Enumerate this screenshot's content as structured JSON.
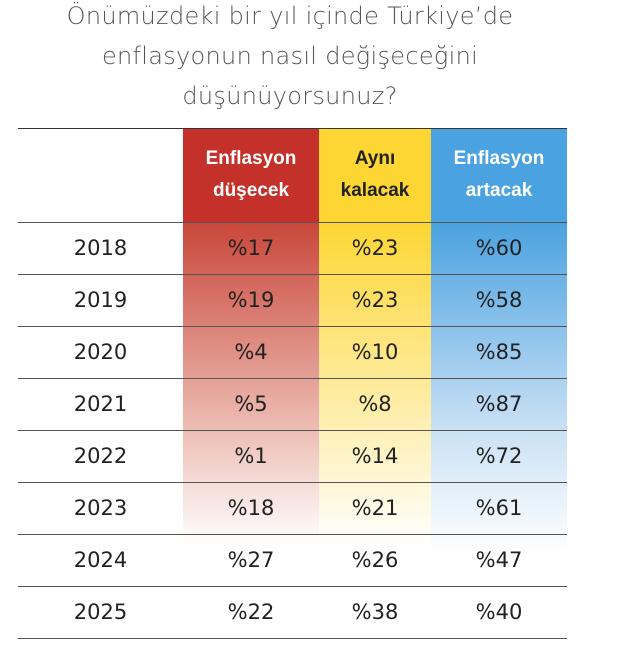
{
  "title": [
    "Önümüzdeki bir yıl içinde Türkiye’de",
    "enflasyonun nasıl değişeceğini",
    "düşünüyorsunuz?"
  ],
  "table": {
    "header": [
      [
        "Enflasyon",
        "düşecek"
      ],
      [
        "Aynı",
        "kalacak"
      ],
      [
        "Enflasyon",
        "artacak"
      ]
    ],
    "rows": [
      [
        "2018",
        "%17",
        "%23",
        "%60"
      ],
      [
        "2019",
        "%19",
        "%23",
        "%58"
      ],
      [
        "2020",
        "%4",
        "%10",
        "%85"
      ],
      [
        "2021",
        "%5",
        "%8",
        "%87"
      ],
      [
        "2022",
        "%1",
        "%14",
        "%72"
      ],
      [
        "2023",
        "%18",
        "%21",
        "%61"
      ],
      [
        "2024",
        "%27",
        "%26",
        "%47"
      ],
      [
        "2025",
        "%22",
        "%38",
        "%40"
      ]
    ]
  }
}
